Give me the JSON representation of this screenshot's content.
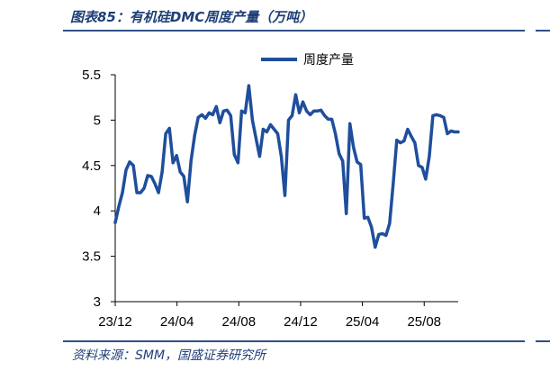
{
  "figure": {
    "title": "图表85：有机硅DMC周度产量（万吨）",
    "source": "资料来源：SMM，国盛证券研究所"
  },
  "colors": {
    "line": "#1f4e9c",
    "rule": "#2f4f86",
    "axis": "#000000"
  },
  "chart_data": {
    "type": "line",
    "title": "",
    "xlabel": "",
    "ylabel": "",
    "ylim": [
      3,
      5.5
    ],
    "yticks": [
      "3",
      "3.5",
      "4",
      "4.5",
      "5",
      "5.5"
    ],
    "xticks": [
      "23/12",
      "24/04",
      "24/08",
      "24/12",
      "25/04",
      "25/08"
    ],
    "legend_position": "top-center",
    "grid": false,
    "series": [
      {
        "name": "周度产量",
        "x": [
          0,
          1,
          2,
          3,
          4,
          5,
          6,
          7,
          8,
          9,
          10,
          11,
          12,
          13,
          14,
          15,
          16,
          17,
          18,
          19,
          20,
          21,
          22,
          23,
          24,
          25,
          26,
          27,
          28,
          29,
          30,
          31,
          32,
          33,
          34,
          35,
          36,
          37,
          38,
          39,
          40,
          41,
          42,
          43,
          44,
          45,
          46,
          47,
          48,
          49,
          50,
          51,
          52,
          53,
          54,
          55,
          56,
          57,
          58,
          59,
          60,
          61,
          62,
          63,
          64,
          65,
          66,
          67,
          68,
          69,
          70,
          71,
          72,
          73,
          74,
          75,
          76,
          77,
          78,
          79,
          80,
          81,
          82,
          83,
          84,
          85,
          86,
          87,
          88,
          89,
          90,
          91,
          92,
          93,
          94,
          95
        ],
        "values": [
          3.87,
          4.05,
          4.2,
          4.45,
          4.54,
          4.5,
          4.2,
          4.2,
          4.25,
          4.39,
          4.38,
          4.3,
          4.2,
          4.43,
          4.85,
          4.91,
          4.53,
          4.61,
          4.43,
          4.38,
          4.1,
          4.55,
          4.83,
          5.03,
          5.06,
          5.02,
          5.08,
          5.06,
          5.15,
          4.97,
          5.1,
          5.11,
          5.05,
          4.62,
          4.53,
          5.1,
          5.08,
          5.38,
          5,
          4.8,
          4.6,
          4.9,
          4.87,
          4.95,
          4.9,
          4.85,
          4.6,
          4.17,
          5,
          5.05,
          5.28,
          5.08,
          5.2,
          5.1,
          5.06,
          5.1,
          5.1,
          5.11,
          5.05,
          5.01,
          5.01,
          4.85,
          4.63,
          4.55,
          3.97,
          4.96,
          4.7,
          4.54,
          4.51,
          3.92,
          3.93,
          3.82,
          3.6,
          3.74,
          3.75,
          3.73,
          3.86,
          4.3,
          4.78,
          4.75,
          4.77,
          4.9,
          4.82,
          4.75,
          4.5,
          4.48,
          4.35,
          4.6,
          5.05,
          5.06,
          5.05,
          5.03,
          4.85,
          4.88,
          4.87,
          4.87
        ]
      }
    ]
  }
}
